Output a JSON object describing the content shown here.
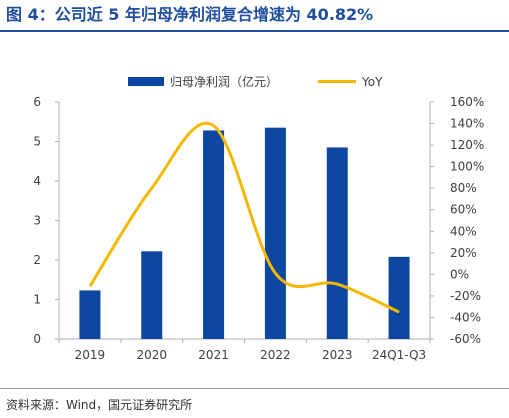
{
  "figure": {
    "title": "图 4：公司近 5 年归母净利润复合增速为 40.82%",
    "source": "资料来源：Wind，国元证券研究所"
  },
  "colors": {
    "bar": "#0d47a1",
    "line": "#f5b800",
    "title": "#1f4e9e",
    "axis_text": "#404040",
    "axis_line": "#b0b0b0"
  },
  "chart_data": {
    "type": "bar",
    "categories": [
      "2019",
      "2020",
      "2021",
      "2022",
      "2023",
      "24Q1-Q3"
    ],
    "series": [
      {
        "name": "归母净利润（亿元）",
        "type": "bar",
        "axis": "left",
        "values": [
          1.23,
          2.22,
          5.28,
          5.35,
          4.85,
          2.08
        ]
      },
      {
        "name": "YoY",
        "type": "line",
        "axis": "right",
        "smooth": true,
        "values": [
          -11,
          80,
          138,
          1,
          -9,
          -35
        ]
      }
    ],
    "y_left": {
      "min": 0,
      "max": 6,
      "ticks": [
        "0",
        "1",
        "2",
        "3",
        "4",
        "5",
        "6"
      ]
    },
    "y_right": {
      "min": -60,
      "max": 160,
      "ticks": [
        "-60%",
        "-40%",
        "-20%",
        "0%",
        "20%",
        "40%",
        "60%",
        "80%",
        "100%",
        "120%",
        "140%",
        "160%"
      ]
    },
    "legend_position": "top-center",
    "grid": false
  }
}
